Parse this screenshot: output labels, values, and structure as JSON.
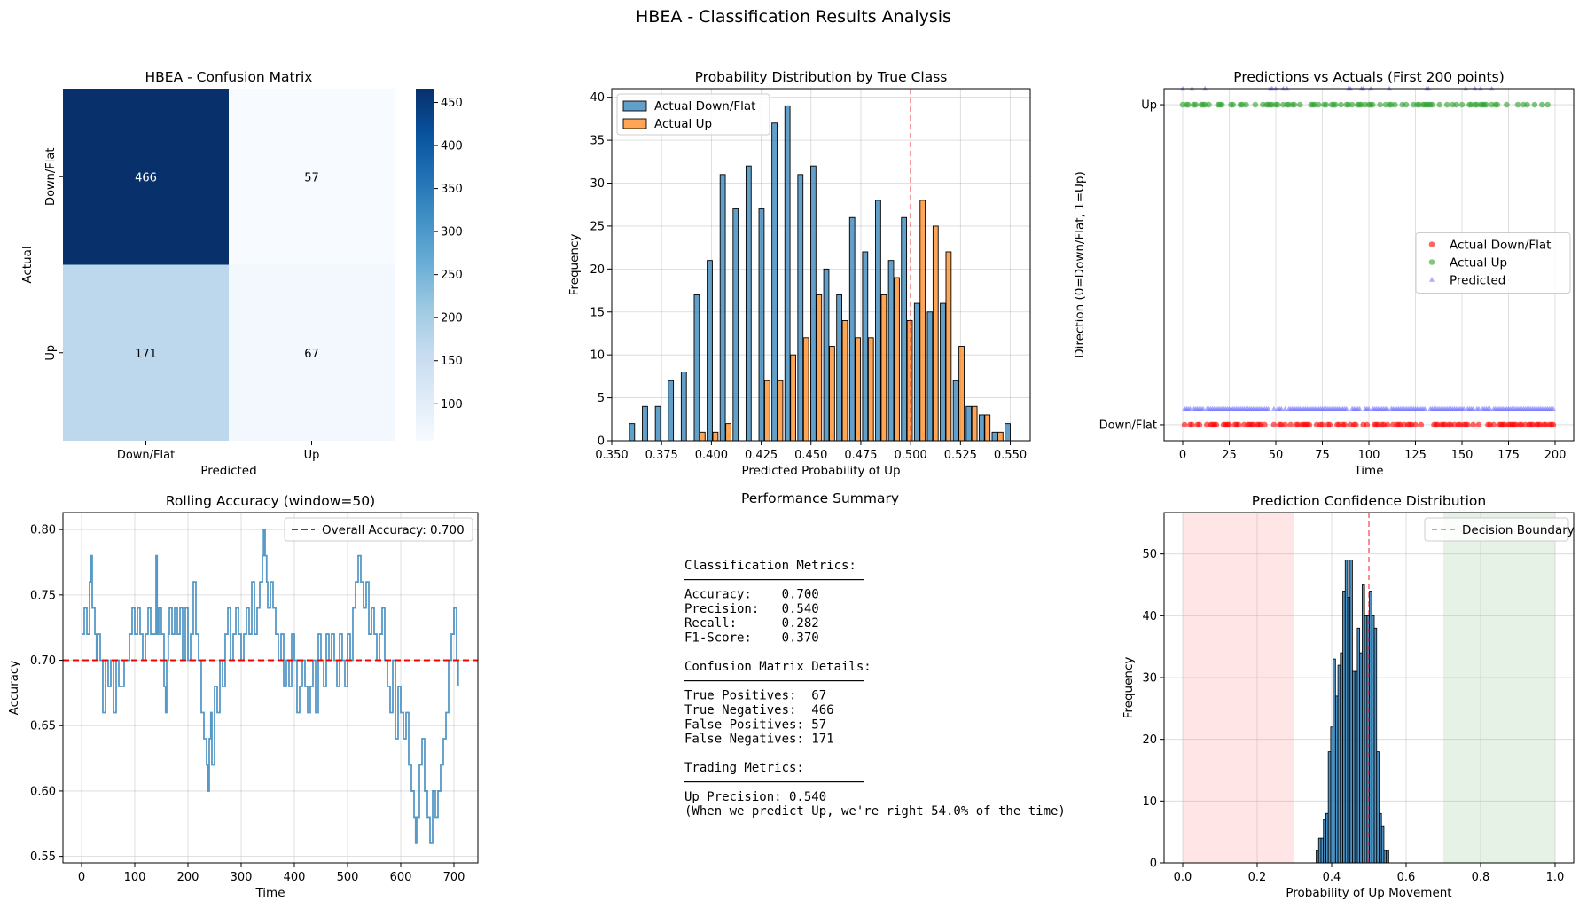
{
  "suptitle": "HBEA - Classification Results Analysis",
  "colors": {
    "blue": "#1f77b4",
    "orange": "#ff7f0e",
    "red": "#ff0000",
    "green": "#2ca02c",
    "pred": "#6a6aff",
    "cm_dark": "#08306b",
    "cm_light": "#f7fbff"
  },
  "chart_data": [
    {
      "id": "confusion",
      "type": "heatmap",
      "title": "HBEA - Confusion Matrix",
      "xlabel": "Predicted",
      "ylabel": "Actual",
      "x_categories": [
        "Down/Flat",
        "Up"
      ],
      "y_categories": [
        "Down/Flat",
        "Up"
      ],
      "values": [
        [
          466,
          57
        ],
        [
          171,
          67
        ]
      ],
      "value_labels": [
        "466",
        "57",
        "171",
        "67"
      ],
      "colorbar": {
        "vmin": 57,
        "vmax": 466,
        "ticks": [
          100,
          150,
          200,
          250,
          300,
          350,
          400,
          450
        ],
        "tick_labels": [
          "100",
          "150",
          "200",
          "250",
          "300",
          "350",
          "400",
          "450"
        ]
      }
    },
    {
      "id": "prob_hist",
      "type": "bar",
      "title": "Probability Distribution by True Class",
      "xlabel": "Predicted Probability of Up",
      "ylabel": "Frequency",
      "xlim": [
        0.35,
        0.56
      ],
      "ylim": [
        0,
        41
      ],
      "x_ticks": [
        0.35,
        0.375,
        0.4,
        0.425,
        0.45,
        0.475,
        0.5,
        0.525,
        0.55
      ],
      "x_tick_labels": [
        "0.350",
        "0.375",
        "0.400",
        "0.425",
        "0.450",
        "0.475",
        "0.500",
        "0.525",
        "0.550"
      ],
      "y_ticks": [
        0,
        5,
        10,
        15,
        20,
        25,
        30,
        35,
        40
      ],
      "y_tick_labels": [
        "0",
        "5",
        "10",
        "15",
        "20",
        "25",
        "30",
        "35",
        "40"
      ],
      "vline": 0.5,
      "legend": "upper left",
      "bin_centers": [
        0.3616,
        0.3681,
        0.3746,
        0.3811,
        0.3876,
        0.3941,
        0.4006,
        0.4071,
        0.4136,
        0.4201,
        0.4266,
        0.4331,
        0.4396,
        0.4461,
        0.4526,
        0.4591,
        0.4656,
        0.4721,
        0.4786,
        0.4851,
        0.4916,
        0.4981,
        0.5046,
        0.5111,
        0.5176,
        0.5241,
        0.5306,
        0.5371,
        0.5436,
        0.5501
      ],
      "series": [
        {
          "name": "Actual Down/Flat",
          "values": [
            2,
            4,
            4,
            7,
            8,
            17,
            21,
            31,
            27,
            32,
            27,
            37,
            39,
            31,
            32,
            20,
            17,
            26,
            22,
            28,
            21,
            26,
            16,
            15,
            16,
            7,
            4,
            3,
            1,
            2
          ]
        },
        {
          "name": "Actual Up",
          "values": [
            0,
            0,
            0,
            0,
            0,
            1,
            1,
            2,
            0,
            0,
            7,
            7,
            10,
            12,
            17,
            11,
            14,
            12,
            12,
            17,
            19,
            14,
            28,
            25,
            22,
            11,
            4,
            3,
            1,
            0
          ]
        }
      ]
    },
    {
      "id": "pred_vs_actual",
      "type": "scatter",
      "title": "Predictions vs Actuals (First 200 points)",
      "xlabel": "Time",
      "ylabel": "Direction (0=Down/Flat, 1=Up)",
      "xlim": [
        -10,
        210
      ],
      "ylim": [
        -0.05,
        1.05
      ],
      "x_ticks": [
        0,
        25,
        50,
        75,
        100,
        125,
        150,
        175,
        200
      ],
      "x_tick_labels": [
        "0",
        "25",
        "50",
        "75",
        "100",
        "125",
        "150",
        "175",
        "200"
      ],
      "y_ticks": [
        0,
        1
      ],
      "y_tick_labels": [
        "Down/Flat",
        "Up"
      ],
      "legend": "center right",
      "up_indices": [
        0,
        2,
        3,
        6,
        7,
        10,
        11,
        12,
        14,
        19,
        20,
        21,
        26,
        27,
        31,
        32,
        34,
        39,
        43,
        45,
        46,
        47,
        48,
        50,
        51,
        54,
        56,
        57,
        59,
        60,
        63,
        69,
        70,
        71,
        73,
        76,
        77,
        80,
        81,
        82,
        85,
        88,
        89,
        91,
        94,
        95,
        96,
        98,
        100,
        101,
        102,
        106,
        109,
        111,
        112,
        114,
        118,
        120,
        124,
        126,
        127,
        129,
        130,
        131,
        132,
        133,
        134,
        138,
        142,
        145,
        147,
        150,
        154,
        155,
        157,
        158,
        160,
        161,
        162,
        163,
        166,
        168,
        169,
        174,
        180,
        183,
        185,
        189,
        193,
        196
      ],
      "pred_up_indices": [
        0,
        5,
        12,
        47,
        48,
        50,
        54,
        56,
        89,
        90,
        96,
        97,
        101,
        111,
        131,
        132,
        152,
        157,
        160,
        166
      ],
      "series": [
        {
          "name": "Actual Down/Flat",
          "values": []
        },
        {
          "name": "Actual Up",
          "values": []
        },
        {
          "name": "Predicted",
          "values": []
        }
      ]
    },
    {
      "id": "rolling",
      "type": "line",
      "title": "Rolling Accuracy (window=50)",
      "xlabel": "Time",
      "ylabel": "Accuracy",
      "xlim": [
        -35,
        745
      ],
      "ylim": [
        0.545,
        0.813
      ],
      "x_ticks": [
        0,
        100,
        200,
        300,
        400,
        500,
        600,
        700
      ],
      "x_tick_labels": [
        "0",
        "100",
        "200",
        "300",
        "400",
        "500",
        "600",
        "700"
      ],
      "y_ticks": [
        0.55,
        0.6,
        0.65,
        0.7,
        0.75,
        0.8
      ],
      "y_tick_labels": [
        "0.55",
        "0.60",
        "0.65",
        "0.70",
        "0.75",
        "0.80"
      ],
      "hline": 0.7,
      "legend": "upper right",
      "series": [
        {
          "name": "Overall Accuracy: 0.700",
          "values": []
        },
        {
          "name": "",
          "x": [
            0,
            5,
            10,
            15,
            18,
            20,
            25,
            28,
            30,
            35,
            40,
            45,
            50,
            55,
            60,
            65,
            70,
            75,
            80,
            85,
            90,
            95,
            100,
            105,
            110,
            115,
            120,
            125,
            130,
            135,
            140,
            142,
            145,
            150,
            155,
            158,
            160,
            163,
            165,
            170,
            175,
            180,
            185,
            190,
            195,
            200,
            205,
            210,
            215,
            220,
            225,
            230,
            235,
            238,
            240,
            243,
            245,
            250,
            255,
            260,
            265,
            270,
            275,
            280,
            285,
            290,
            295,
            300,
            305,
            310,
            315,
            320,
            325,
            330,
            335,
            340,
            342,
            345,
            348,
            350,
            355,
            360,
            365,
            370,
            375,
            380,
            385,
            390,
            395,
            400,
            405,
            410,
            415,
            420,
            425,
            430,
            435,
            440,
            445,
            450,
            455,
            460,
            465,
            470,
            475,
            480,
            485,
            490,
            495,
            500,
            505,
            510,
            515,
            520,
            525,
            530,
            535,
            540,
            545,
            550,
            555,
            560,
            565,
            570,
            575,
            580,
            585,
            590,
            595,
            600,
            605,
            610,
            615,
            620,
            625,
            628,
            630,
            635,
            640,
            645,
            650,
            655,
            660,
            665,
            670,
            675,
            680,
            685,
            690,
            695,
            700,
            705,
            708
          ],
          "y": [
            0.72,
            0.74,
            0.72,
            0.76,
            0.78,
            0.74,
            0.72,
            0.7,
            0.72,
            0.7,
            0.66,
            0.7,
            0.68,
            0.7,
            0.66,
            0.7,
            0.68,
            0.68,
            0.7,
            0.7,
            0.72,
            0.74,
            0.72,
            0.74,
            0.72,
            0.7,
            0.72,
            0.74,
            0.72,
            0.72,
            0.78,
            0.72,
            0.74,
            0.72,
            0.68,
            0.66,
            0.7,
            0.72,
            0.74,
            0.72,
            0.74,
            0.72,
            0.74,
            0.7,
            0.74,
            0.7,
            0.72,
            0.76,
            0.72,
            0.7,
            0.66,
            0.64,
            0.62,
            0.6,
            0.64,
            0.66,
            0.62,
            0.68,
            0.66,
            0.7,
            0.68,
            0.72,
            0.74,
            0.7,
            0.72,
            0.74,
            0.72,
            0.7,
            0.72,
            0.74,
            0.72,
            0.76,
            0.72,
            0.74,
            0.76,
            0.78,
            0.8,
            0.78,
            0.76,
            0.74,
            0.76,
            0.74,
            0.72,
            0.7,
            0.72,
            0.68,
            0.7,
            0.68,
            0.72,
            0.7,
            0.66,
            0.68,
            0.7,
            0.68,
            0.66,
            0.68,
            0.7,
            0.66,
            0.72,
            0.7,
            0.68,
            0.72,
            0.7,
            0.72,
            0.7,
            0.68,
            0.72,
            0.7,
            0.68,
            0.72,
            0.7,
            0.74,
            0.76,
            0.78,
            0.76,
            0.74,
            0.76,
            0.72,
            0.74,
            0.72,
            0.7,
            0.72,
            0.74,
            0.7,
            0.68,
            0.66,
            0.7,
            0.64,
            0.68,
            0.66,
            0.64,
            0.66,
            0.62,
            0.6,
            0.58,
            0.56,
            0.58,
            0.62,
            0.64,
            0.6,
            0.58,
            0.56,
            0.6,
            0.58,
            0.6,
            0.62,
            0.64,
            0.66,
            0.7,
            0.72,
            0.74,
            0.7,
            0.68
          ]
        }
      ]
    },
    {
      "id": "confidence",
      "type": "bar",
      "title": "Prediction Confidence Distribution",
      "xlabel": "Probability of Up Movement",
      "ylabel": "Frequency",
      "xlim": [
        -0.05,
        1.05
      ],
      "ylim": [
        0,
        56.7
      ],
      "x_ticks": [
        0.0,
        0.2,
        0.4,
        0.6,
        0.8,
        1.0
      ],
      "x_tick_labels": [
        "0.0",
        "0.2",
        "0.4",
        "0.6",
        "0.8",
        "1.0"
      ],
      "y_ticks": [
        0,
        10,
        20,
        30,
        40,
        50
      ],
      "y_tick_labels": [
        "0",
        "10",
        "20",
        "30",
        "40",
        "50"
      ],
      "vline": 0.5,
      "shade_low": [
        0.0,
        0.3
      ],
      "shade_high": [
        0.7,
        1.0
      ],
      "legend": "upper right",
      "bin_width": 0.0065,
      "bin_centers": [
        0.3616,
        0.3681,
        0.3746,
        0.3811,
        0.3876,
        0.3941,
        0.4006,
        0.4071,
        0.4136,
        0.4201,
        0.4266,
        0.4331,
        0.4396,
        0.4461,
        0.4526,
        0.4591,
        0.4656,
        0.4721,
        0.4786,
        0.4851,
        0.4916,
        0.4981,
        0.5046,
        0.5111,
        0.5176,
        0.5241,
        0.5306,
        0.5371,
        0.5436,
        0.5501
      ],
      "values": [
        2,
        4,
        4,
        7,
        8,
        18,
        22,
        33,
        27,
        32,
        34,
        44,
        49,
        43,
        49,
        31,
        31,
        38,
        34,
        45,
        40,
        40,
        44,
        40,
        38,
        18,
        8,
        6,
        2,
        2
      ],
      "series": [
        {
          "name": "Decision Boundary",
          "values": []
        }
      ]
    }
  ],
  "summary": {
    "title": "Performance Summary",
    "lines": [
      "Classification Metrics:",
      "────────────────────────",
      "Accuracy:    0.700",
      "Precision:   0.540",
      "Recall:      0.282",
      "F1-Score:    0.370",
      "",
      "Confusion Matrix Details:",
      "────────────────────────",
      "True Positives:  67",
      "True Negatives:  466",
      "False Positives: 57",
      "False Negatives: 171",
      "",
      "Trading Metrics:",
      "────────────────────────",
      "Up Precision: 0.540",
      "(When we predict Up, we're right 54.0% of the time)"
    ]
  }
}
